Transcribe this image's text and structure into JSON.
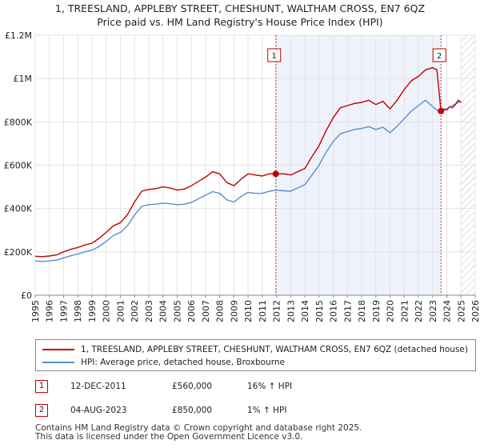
{
  "title": {
    "line1": "1, TREESLAND, APPLEBY STREET, CHESHUNT, WALTHAM CROSS, EN7 6QZ",
    "line2": "Price paid vs. HM Land Registry's House Price Index (HPI)"
  },
  "colors": {
    "property": "#c00000",
    "hpi": "#5b8ccf",
    "future_hatch": "#bbbbbb",
    "marker_line": "#c00000",
    "highlight": "#eef2fb"
  },
  "chart_data": {
    "type": "line",
    "x_ticks": [
      "1995",
      "1996",
      "1997",
      "1998",
      "1999",
      "2000",
      "2001",
      "2002",
      "2003",
      "2004",
      "2005",
      "2006",
      "2007",
      "2008",
      "2009",
      "2010",
      "2011",
      "2012",
      "2013",
      "2014",
      "2015",
      "2016",
      "2017",
      "2018",
      "2019",
      "2020",
      "2021",
      "2022",
      "2023",
      "2024",
      "2025",
      "2026"
    ],
    "y_ticks": [
      "£0",
      "£200K",
      "£400K",
      "£600K",
      "£800K",
      "£1M",
      "£1.2M"
    ],
    "y_tick_values": [
      0,
      200000,
      400000,
      600000,
      800000,
      1000000,
      1200000
    ],
    "xlim": [
      1995,
      2026
    ],
    "ylim": [
      0,
      1200000
    ],
    "future_start": 2025.0,
    "highlight_range": [
      2011.95,
      2023.59
    ],
    "series": [
      {
        "name": "1, TREESLAND, APPLEBY STREET, CHESHUNT, WALTHAM CROSS, EN7 6QZ (detached house)",
        "x": [
          1995,
          1995.5,
          1996,
          1996.5,
          1997,
          1997.5,
          1998,
          1998.5,
          1999,
          1999.5,
          2000,
          2000.5,
          2001,
          2001.5,
          2002,
          2002.5,
          2003,
          2003.5,
          2004,
          2004.5,
          2005,
          2005.5,
          2006,
          2006.5,
          2007,
          2007.5,
          2008,
          2008.5,
          2009,
          2009.5,
          2010,
          2010.5,
          2011,
          2011.5,
          2011.95,
          2012.5,
          2013,
          2013.5,
          2014,
          2014.5,
          2015,
          2015.5,
          2016,
          2016.5,
          2017,
          2017.5,
          2018,
          2018.5,
          2019,
          2019.5,
          2020,
          2020.5,
          2021,
          2021.5,
          2022,
          2022.5,
          2023,
          2023.3,
          2023.59
        ],
        "values": [
          180000,
          178000,
          181000,
          186000,
          200000,
          212000,
          220000,
          232000,
          240000,
          262000,
          290000,
          320000,
          335000,
          372000,
          430000,
          480000,
          488000,
          492000,
          500000,
          495000,
          485000,
          490000,
          505000,
          525000,
          545000,
          570000,
          560000,
          520000,
          505000,
          535000,
          560000,
          555000,
          550000,
          560000,
          560000,
          560000,
          555000,
          570000,
          585000,
          640000,
          690000,
          760000,
          820000,
          865000,
          875000,
          885000,
          890000,
          900000,
          880000,
          895000,
          860000,
          900000,
          950000,
          990000,
          1010000,
          1040000,
          1050000,
          1040000,
          850000
        ]
      },
      {
        "name": "HPI: Average price, detached house, Broxbourne",
        "x": [
          1995,
          1995.5,
          1996,
          1996.5,
          1997,
          1997.5,
          1998,
          1998.5,
          1999,
          1999.5,
          2000,
          2000.5,
          2001,
          2001.5,
          2002,
          2002.5,
          2003,
          2003.5,
          2004,
          2004.5,
          2005,
          2005.5,
          2006,
          2006.5,
          2007,
          2007.5,
          2008,
          2008.5,
          2009,
          2009.5,
          2010,
          2010.5,
          2011,
          2011.5,
          2012,
          2012.5,
          2013,
          2013.5,
          2014,
          2014.5,
          2015,
          2015.5,
          2016,
          2016.5,
          2017,
          2017.5,
          2018,
          2018.5,
          2019,
          2019.5,
          2020,
          2020.5,
          2021,
          2021.5,
          2022,
          2022.5,
          2023,
          2023.5,
          2024,
          2024.5,
          2025
        ],
        "values": [
          158000,
          156000,
          158000,
          162000,
          172000,
          182000,
          190000,
          200000,
          208000,
          225000,
          248000,
          275000,
          290000,
          320000,
          370000,
          410000,
          418000,
          420000,
          425000,
          422000,
          418000,
          420000,
          428000,
          445000,
          462000,
          478000,
          470000,
          440000,
          430000,
          455000,
          475000,
          470000,
          470000,
          480000,
          485000,
          482000,
          480000,
          495000,
          510000,
          555000,
          600000,
          660000,
          710000,
          745000,
          755000,
          765000,
          770000,
          778000,
          765000,
          775000,
          750000,
          780000,
          815000,
          850000,
          875000,
          900000,
          870000,
          845000,
          860000,
          880000,
          895000
        ]
      }
    ],
    "markers": [
      {
        "label": "1",
        "x": 2011.95,
        "value": 560000
      },
      {
        "label": "2",
        "x": 2023.59,
        "value": 850000
      }
    ],
    "tail": {
      "x": [
        2023.59,
        2023.8,
        2024.0,
        2024.2,
        2024.4,
        2024.6,
        2024.8,
        2025.0
      ],
      "values": [
        850000,
        860000,
        855000,
        870000,
        865000,
        880000,
        900000,
        890000
      ]
    }
  },
  "legend": {
    "property_label": "1, TREESLAND, APPLEBY STREET, CHESHUNT, WALTHAM CROSS, EN7 6QZ (detached house)",
    "hpi_label": "HPI: Average price, detached house, Broxbourne"
  },
  "transactions": [
    {
      "badge": "1",
      "date": "12-DEC-2011",
      "price": "£560,000",
      "hpi": "16% ↑ HPI"
    },
    {
      "badge": "2",
      "date": "04-AUG-2023",
      "price": "£850,000",
      "hpi": "1% ↑ HPI"
    }
  ],
  "footer": {
    "line1": "Contains HM Land Registry data © Crown copyright and database right 2025.",
    "line2": "This data is licensed under the Open Government Licence v3.0."
  }
}
